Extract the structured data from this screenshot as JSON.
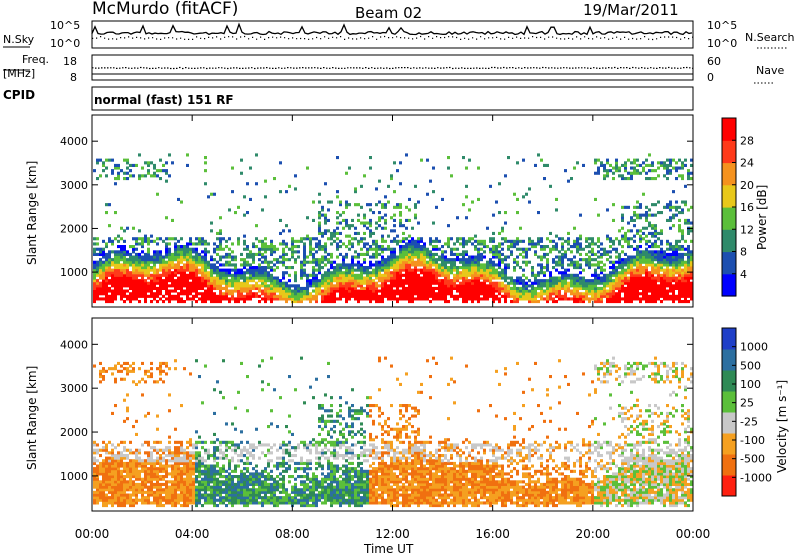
{
  "header": {
    "station": "McMurdo (fitACF)",
    "beam": "Beam 02",
    "date": "19/Mar/2011"
  },
  "status_panels": {
    "noise_label_left": "N.Sky",
    "noise_label_right": "N.Search",
    "noise_ticks_left": [
      "10^5",
      "10^0"
    ],
    "noise_ticks_right": [
      "10^5",
      "10^0"
    ],
    "freq_label_line1": "Freq.",
    "freq_label_line2": "[MHz]",
    "freq_ticks": [
      "18",
      "8"
    ],
    "nave_label": "Nave",
    "nave_ticks": [
      "60",
      "0"
    ],
    "cpid_label": "CPID",
    "cpid_text": "normal (fast) 151 RF"
  },
  "chart_data": [
    {
      "type": "heatmap",
      "name": "power",
      "ylabel": "Slant Range [km]",
      "xlabel": "",
      "yticks": [
        "1000",
        "2000",
        "3000",
        "4000"
      ],
      "ylim": [
        200,
        4600
      ],
      "xlim_hours": [
        0,
        24
      ],
      "colorbar": {
        "label": "Power [dB]",
        "ticks": [
          "4",
          "8",
          "12",
          "16",
          "20",
          "24",
          "28"
        ],
        "colors": [
          "#0000ff",
          "#1c4fb0",
          "#2f8a6a",
          "#5bbf3a",
          "#e8c81a",
          "#f5921e",
          "#ff3a1a",
          "#ff0000"
        ]
      }
    },
    {
      "type": "heatmap",
      "name": "velocity",
      "ylabel": "Slant Range [km]",
      "xlabel": "Time UT",
      "yticks": [
        "1000",
        "2000",
        "3000",
        "4000"
      ],
      "ylim": [
        200,
        4600
      ],
      "xticks": [
        "00:00",
        "04:00",
        "08:00",
        "12:00",
        "16:00",
        "20:00",
        "00:00"
      ],
      "colorbar": {
        "label": "Velocity [m s⁻¹]",
        "ticks": [
          "1000",
          "500",
          "100",
          "25",
          "-25",
          "-100",
          "-500",
          "-1000"
        ],
        "colors": [
          "#1f3fc8",
          "#2c6fa0",
          "#2f8a55",
          "#5bbf3a",
          "#c8c8c8",
          "#f5a020",
          "#f07010",
          "#ff2010"
        ]
      }
    }
  ]
}
